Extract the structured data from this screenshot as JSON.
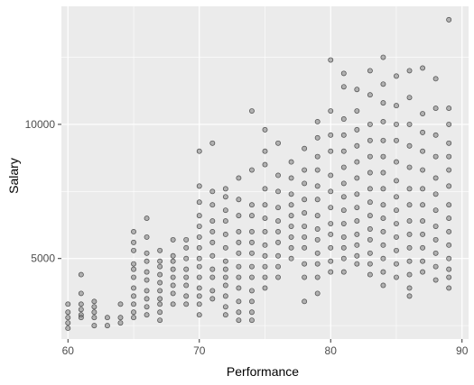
{
  "chart_data": {
    "type": "scatter",
    "xlabel": "Performance",
    "ylabel": "Salary",
    "xlim": [
      59.5,
      90.5
    ],
    "ylim": [
      2000,
      14400
    ],
    "x_ticks": [
      60,
      70,
      80,
      90
    ],
    "y_ticks": [
      5000,
      10000
    ],
    "x_minor": [
      65,
      75,
      85
    ],
    "y_minor": [
      2500,
      7500,
      12500
    ],
    "grid": true,
    "colors": {
      "panel": "#ebebeb",
      "grid": "#ffffff",
      "point_fill": "#7f7f7f",
      "point_stroke": "#2b2b2b"
    },
    "points": [
      [
        60,
        3300
      ],
      [
        60,
        3000
      ],
      [
        60,
        2800
      ],
      [
        60,
        2600
      ],
      [
        60,
        2400
      ],
      [
        61,
        4400
      ],
      [
        61,
        3700
      ],
      [
        61,
        3300
      ],
      [
        61,
        3100
      ],
      [
        61,
        2900
      ],
      [
        61,
        2800
      ],
      [
        62,
        3400
      ],
      [
        62,
        3200
      ],
      [
        62,
        3000
      ],
      [
        62,
        2800
      ],
      [
        62,
        2500
      ],
      [
        63,
        2800
      ],
      [
        63,
        2500
      ],
      [
        64,
        3300
      ],
      [
        64,
        2800
      ],
      [
        64,
        2600
      ],
      [
        65,
        6000
      ],
      [
        65,
        5600
      ],
      [
        65,
        5300
      ],
      [
        65,
        4800
      ],
      [
        65,
        4600
      ],
      [
        65,
        4300
      ],
      [
        65,
        3900
      ],
      [
        65,
        3600
      ],
      [
        65,
        3300
      ],
      [
        65,
        3000
      ],
      [
        65,
        2800
      ],
      [
        66,
        6500
      ],
      [
        66,
        5800
      ],
      [
        66,
        5200
      ],
      [
        66,
        4900
      ],
      [
        66,
        4500
      ],
      [
        66,
        4200
      ],
      [
        66,
        3800
      ],
      [
        66,
        3500
      ],
      [
        66,
        3200
      ],
      [
        66,
        2900
      ],
      [
        67,
        5300
      ],
      [
        67,
        4900
      ],
      [
        67,
        4700
      ],
      [
        67,
        4400
      ],
      [
        67,
        4100
      ],
      [
        67,
        3800
      ],
      [
        67,
        3500
      ],
      [
        67,
        3300
      ],
      [
        67,
        3000
      ],
      [
        67,
        2700
      ],
      [
        68,
        5700
      ],
      [
        68,
        5100
      ],
      [
        68,
        4900
      ],
      [
        68,
        4600
      ],
      [
        68,
        4300
      ],
      [
        68,
        4000
      ],
      [
        68,
        3700
      ],
      [
        68,
        3300
      ],
      [
        69,
        5700
      ],
      [
        69,
        5400
      ],
      [
        69,
        5000
      ],
      [
        69,
        4600
      ],
      [
        69,
        4300
      ],
      [
        69,
        4000
      ],
      [
        69,
        3600
      ],
      [
        69,
        3300
      ],
      [
        70,
        9000
      ],
      [
        70,
        7700
      ],
      [
        70,
        7100
      ],
      [
        70,
        6600
      ],
      [
        70,
        6200
      ],
      [
        70,
        5800
      ],
      [
        70,
        5400
      ],
      [
        70,
        5000
      ],
      [
        70,
        4700
      ],
      [
        70,
        4300
      ],
      [
        70,
        3900
      ],
      [
        70,
        3600
      ],
      [
        70,
        3300
      ],
      [
        70,
        2900
      ],
      [
        71,
        9300
      ],
      [
        71,
        7500
      ],
      [
        71,
        7000
      ],
      [
        71,
        6400
      ],
      [
        71,
        6000
      ],
      [
        71,
        5600
      ],
      [
        71,
        5100
      ],
      [
        71,
        4600
      ],
      [
        71,
        4300
      ],
      [
        71,
        3800
      ],
      [
        71,
        3500
      ],
      [
        72,
        7600
      ],
      [
        72,
        7300
      ],
      [
        72,
        6800
      ],
      [
        72,
        6400
      ],
      [
        72,
        5900
      ],
      [
        72,
        5400
      ],
      [
        72,
        4900
      ],
      [
        72,
        4600
      ],
      [
        72,
        4300
      ],
      [
        72,
        4000
      ],
      [
        72,
        3600
      ],
      [
        72,
        3200
      ],
      [
        72,
        2900
      ],
      [
        73,
        8000
      ],
      [
        73,
        7200
      ],
      [
        73,
        6600
      ],
      [
        73,
        6000
      ],
      [
        73,
        5600
      ],
      [
        73,
        5200
      ],
      [
        73,
        4700
      ],
      [
        73,
        4300
      ],
      [
        73,
        3900
      ],
      [
        73,
        3400
      ],
      [
        73,
        3000
      ],
      [
        73,
        2700
      ],
      [
        74,
        10500
      ],
      [
        74,
        8300
      ],
      [
        74,
        7000
      ],
      [
        74,
        6600
      ],
      [
        74,
        6000
      ],
      [
        74,
        5600
      ],
      [
        74,
        5200
      ],
      [
        74,
        4700
      ],
      [
        74,
        4300
      ],
      [
        74,
        3800
      ],
      [
        74,
        3400
      ],
      [
        74,
        3000
      ],
      [
        74,
        2700
      ],
      [
        75,
        9800
      ],
      [
        75,
        9000
      ],
      [
        75,
        8500
      ],
      [
        75,
        7600
      ],
      [
        75,
        7000
      ],
      [
        75,
        6500
      ],
      [
        75,
        6000
      ],
      [
        75,
        5500
      ],
      [
        75,
        5100
      ],
      [
        75,
        4700
      ],
      [
        75,
        4300
      ],
      [
        75,
        3900
      ],
      [
        76,
        9300
      ],
      [
        76,
        8100
      ],
      [
        76,
        7500
      ],
      [
        76,
        6900
      ],
      [
        76,
        6400
      ],
      [
        76,
        6000
      ],
      [
        76,
        5600
      ],
      [
        76,
        5100
      ],
      [
        76,
        4700
      ],
      [
        76,
        4300
      ],
      [
        77,
        8600
      ],
      [
        77,
        8000
      ],
      [
        77,
        7400
      ],
      [
        77,
        7000
      ],
      [
        77,
        6600
      ],
      [
        77,
        6200
      ],
      [
        77,
        5800
      ],
      [
        77,
        5400
      ],
      [
        77,
        5000
      ],
      [
        78,
        9100
      ],
      [
        78,
        8300
      ],
      [
        78,
        7800
      ],
      [
        78,
        7200
      ],
      [
        78,
        6700
      ],
      [
        78,
        6200
      ],
      [
        78,
        5800
      ],
      [
        78,
        5400
      ],
      [
        78,
        4800
      ],
      [
        78,
        4300
      ],
      [
        78,
        3400
      ],
      [
        79,
        10100
      ],
      [
        79,
        9500
      ],
      [
        79,
        8800
      ],
      [
        79,
        8300
      ],
      [
        79,
        7700
      ],
      [
        79,
        7200
      ],
      [
        79,
        6600
      ],
      [
        79,
        6100
      ],
      [
        79,
        5700
      ],
      [
        79,
        5200
      ],
      [
        79,
        4800
      ],
      [
        79,
        4300
      ],
      [
        79,
        3700
      ],
      [
        80,
        12400
      ],
      [
        80,
        10500
      ],
      [
        80,
        9600
      ],
      [
        80,
        9000
      ],
      [
        80,
        8100
      ],
      [
        80,
        7500
      ],
      [
        80,
        6900
      ],
      [
        80,
        6300
      ],
      [
        80,
        5900
      ],
      [
        80,
        5400
      ],
      [
        80,
        4900
      ],
      [
        80,
        4500
      ],
      [
        81,
        11900
      ],
      [
        81,
        11400
      ],
      [
        81,
        10200
      ],
      [
        81,
        9600
      ],
      [
        81,
        9000
      ],
      [
        81,
        8400
      ],
      [
        81,
        7800
      ],
      [
        81,
        7300
      ],
      [
        81,
        6800
      ],
      [
        81,
        6300
      ],
      [
        81,
        5800
      ],
      [
        81,
        5400
      ],
      [
        81,
        5000
      ],
      [
        81,
        4500
      ],
      [
        82,
        11300
      ],
      [
        82,
        10500
      ],
      [
        82,
        9800
      ],
      [
        82,
        9200
      ],
      [
        82,
        8600
      ],
      [
        82,
        8000
      ],
      [
        82,
        7400
      ],
      [
        82,
        6900
      ],
      [
        82,
        6400
      ],
      [
        82,
        5900
      ],
      [
        82,
        5500
      ],
      [
        82,
        5100
      ],
      [
        82,
        4800
      ],
      [
        83,
        12000
      ],
      [
        83,
        11100
      ],
      [
        83,
        10000
      ],
      [
        83,
        9400
      ],
      [
        83,
        8800
      ],
      [
        83,
        8200
      ],
      [
        83,
        7600
      ],
      [
        83,
        7100
      ],
      [
        83,
        6600
      ],
      [
        83,
        6100
      ],
      [
        83,
        5700
      ],
      [
        83,
        5200
      ],
      [
        83,
        4800
      ],
      [
        83,
        4400
      ],
      [
        84,
        12500
      ],
      [
        84,
        11500
      ],
      [
        84,
        10800
      ],
      [
        84,
        10100
      ],
      [
        84,
        9400
      ],
      [
        84,
        8800
      ],
      [
        84,
        8200
      ],
      [
        84,
        7600
      ],
      [
        84,
        7000
      ],
      [
        84,
        6500
      ],
      [
        84,
        6000
      ],
      [
        84,
        5500
      ],
      [
        84,
        5000
      ],
      [
        84,
        4500
      ],
      [
        84,
        4000
      ],
      [
        85,
        11800
      ],
      [
        85,
        10700
      ],
      [
        85,
        10000
      ],
      [
        85,
        9400
      ],
      [
        85,
        8600
      ],
      [
        85,
        7900
      ],
      [
        85,
        7300
      ],
      [
        85,
        6800
      ],
      [
        85,
        6300
      ],
      [
        85,
        5800
      ],
      [
        85,
        5300
      ],
      [
        85,
        4800
      ],
      [
        85,
        4300
      ],
      [
        86,
        12000
      ],
      [
        86,
        11000
      ],
      [
        86,
        10000
      ],
      [
        86,
        9200
      ],
      [
        86,
        8400
      ],
      [
        86,
        7600
      ],
      [
        86,
        7000
      ],
      [
        86,
        6400
      ],
      [
        86,
        5900
      ],
      [
        86,
        5400
      ],
      [
        86,
        4900
      ],
      [
        86,
        4400
      ],
      [
        86,
        3900
      ],
      [
        86,
        3600
      ],
      [
        87,
        12100
      ],
      [
        87,
        10400
      ],
      [
        87,
        9700
      ],
      [
        87,
        9000
      ],
      [
        87,
        8300
      ],
      [
        87,
        7600
      ],
      [
        87,
        7000
      ],
      [
        87,
        6400
      ],
      [
        87,
        5900
      ],
      [
        87,
        5400
      ],
      [
        87,
        4900
      ],
      [
        87,
        4500
      ],
      [
        88,
        11700
      ],
      [
        88,
        10600
      ],
      [
        88,
        9600
      ],
      [
        88,
        8800
      ],
      [
        88,
        8000
      ],
      [
        88,
        7400
      ],
      [
        88,
        6800
      ],
      [
        88,
        6200
      ],
      [
        88,
        5700
      ],
      [
        88,
        5200
      ],
      [
        88,
        4700
      ],
      [
        88,
        4200
      ],
      [
        89,
        13900
      ],
      [
        89,
        10600
      ],
      [
        89,
        10000
      ],
      [
        89,
        9300
      ],
      [
        89,
        8800
      ],
      [
        89,
        8300
      ],
      [
        89,
        7700
      ],
      [
        89,
        7000
      ],
      [
        89,
        6500
      ],
      [
        89,
        6000
      ],
      [
        89,
        5500
      ],
      [
        89,
        5000
      ],
      [
        89,
        4600
      ],
      [
        89,
        4300
      ],
      [
        89,
        3900
      ]
    ]
  }
}
